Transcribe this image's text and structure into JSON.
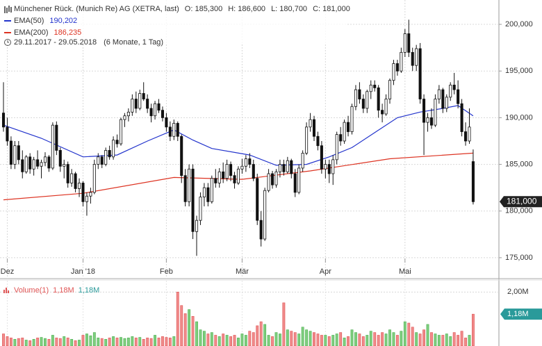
{
  "chart_data": {
    "type": "candlestick",
    "header": {
      "title": "Münchener Rück. (Munich Re) AG (XETRA, last)",
      "open": "O: 185,300",
      "high": "H: 186,600",
      "low": "L: 180,700",
      "close": "C: 181,000",
      "range": "29.11.2017 - 29.05.2018",
      "period": "(6 Monate, 1 Tag)"
    },
    "xlim": [
      -0.92,
      130.8
    ],
    "xticks": [
      {
        "value": 1,
        "label": "Dez"
      },
      {
        "value": 21,
        "label": "Jan '18"
      },
      {
        "value": 43,
        "label": "Feb"
      },
      {
        "value": 63,
        "label": "Mär"
      },
      {
        "value": 85,
        "label": "Apr"
      },
      {
        "value": 106,
        "label": "Mai"
      }
    ],
    "ylim": [
      172.76,
      202.61
    ],
    "yticks": [
      {
        "value": 175,
        "label": "175,000"
      },
      {
        "value": 180,
        "label": "180,000"
      },
      {
        "value": 185,
        "label": "185,000"
      },
      {
        "value": 190,
        "label": "190,000"
      },
      {
        "value": 195,
        "label": "195,000"
      },
      {
        "value": 200,
        "label": "200,000"
      }
    ],
    "grid": true,
    "last_label": "181,000",
    "ohlc": [
      [
        190.5,
        193.8,
        188.5,
        189.0
      ],
      [
        189,
        190,
        187,
        187.5
      ],
      [
        187.5,
        188,
        184.5,
        185
      ],
      [
        185,
        187.5,
        184.5,
        187
      ],
      [
        187,
        187.5,
        185,
        185.5
      ],
      [
        185.5,
        186.5,
        183.5,
        184.2
      ],
      [
        184.2,
        186,
        184,
        185.8
      ],
      [
        185.8,
        186.2,
        184,
        184.5
      ],
      [
        184.5,
        185.8,
        183.8,
        185.5
      ],
      [
        185.5,
        186.5,
        184.5,
        184.8
      ],
      [
        184.8,
        185.5,
        183.5,
        185.2
      ],
      [
        185.2,
        186.3,
        184.8,
        185.8
      ],
      [
        185.8,
        186,
        184.2,
        184.6
      ],
      [
        184.6,
        189.5,
        184.4,
        189.2
      ],
      [
        189.2,
        189.6,
        186,
        186.5
      ],
      [
        186.5,
        186.8,
        184.2,
        184.8
      ],
      [
        184.8,
        185.5,
        183.5,
        185
      ],
      [
        185,
        185.3,
        182.5,
        183
      ],
      [
        183,
        184.5,
        182.6,
        184
      ],
      [
        184,
        184.2,
        182,
        182.4
      ],
      [
        182.4,
        183.5,
        181.5,
        183
      ],
      [
        183,
        183.2,
        180.5,
        181
      ],
      [
        181,
        182,
        179.5,
        181.6
      ],
      [
        181.6,
        182.5,
        180.8,
        182
      ],
      [
        182,
        185.5,
        181.8,
        185
      ],
      [
        185,
        186.2,
        184.5,
        185.8
      ],
      [
        185.8,
        186,
        184.6,
        185
      ],
      [
        185,
        186.8,
        184.8,
        186.5
      ],
      [
        186.5,
        187,
        185.5,
        185.8
      ],
      [
        185.8,
        188,
        185.5,
        187.6
      ],
      [
        187.6,
        188.2,
        186.8,
        187.2
      ],
      [
        187.2,
        190,
        187,
        189.8
      ],
      [
        189.8,
        190.5,
        189,
        190.2
      ],
      [
        190.2,
        191,
        189.6,
        190.6
      ],
      [
        190.6,
        192.5,
        190.2,
        192
      ],
      [
        192,
        192.8,
        190.5,
        191
      ],
      [
        191,
        193,
        190.8,
        192.6
      ],
      [
        192.6,
        193.8,
        191.8,
        192
      ],
      [
        192,
        192.5,
        190.5,
        191
      ],
      [
        191,
        191.5,
        189.5,
        190.2
      ],
      [
        190.2,
        191.8,
        189.8,
        191.5
      ],
      [
        191.5,
        192,
        190.5,
        190.8
      ],
      [
        190.8,
        191.2,
        189.6,
        190
      ],
      [
        190,
        190.5,
        188.5,
        189
      ],
      [
        189,
        189.6,
        187.5,
        188
      ],
      [
        188,
        189.8,
        187.6,
        189.4
      ],
      [
        189.4,
        189.6,
        187.5,
        188
      ],
      [
        188,
        188.2,
        183,
        183.8
      ],
      [
        183.8,
        184.5,
        180.5,
        181
      ],
      [
        181,
        185,
        180.5,
        184.5
      ],
      [
        184.5,
        185,
        177,
        177.8
      ],
      [
        177.8,
        179.5,
        175.2,
        179
      ],
      [
        179,
        182,
        178.5,
        181.5
      ],
      [
        181.5,
        183,
        180.5,
        182.5
      ],
      [
        182.5,
        183,
        180.5,
        181
      ],
      [
        181,
        183.8,
        180.8,
        183.5
      ],
      [
        183.5,
        184.5,
        182.5,
        183
      ],
      [
        183,
        184.6,
        182.5,
        184.2
      ],
      [
        184.2,
        185.2,
        183,
        183.5
      ],
      [
        183.5,
        185.5,
        183.2,
        185
      ],
      [
        185,
        185.3,
        183.2,
        183.8
      ],
      [
        183.8,
        184.2,
        182.4,
        183
      ],
      [
        183,
        184.8,
        182.8,
        184.5
      ],
      [
        184.5,
        185.6,
        184,
        184.8
      ],
      [
        184.8,
        186,
        184.2,
        185.6
      ],
      [
        185.6,
        186.2,
        184.6,
        185
      ],
      [
        185,
        185.5,
        183.2,
        183.5
      ],
      [
        183.5,
        184,
        178.5,
        179
      ],
      [
        179,
        180,
        176.2,
        177
      ],
      [
        177,
        182.5,
        176.8,
        182.2
      ],
      [
        182.2,
        184.5,
        182,
        184
      ],
      [
        184,
        184.3,
        182.4,
        182.8
      ],
      [
        182.8,
        184.5,
        182.5,
        184.2
      ],
      [
        184.2,
        185.5,
        183.6,
        185
      ],
      [
        185,
        185.5,
        183.8,
        184.2
      ],
      [
        184.2,
        185.8,
        184,
        185.4
      ],
      [
        185.4,
        185.6,
        183.5,
        184
      ],
      [
        184,
        184.5,
        181.5,
        182
      ],
      [
        182,
        185,
        181.8,
        184.6
      ],
      [
        184.6,
        186.5,
        184.2,
        186.2
      ],
      [
        186.2,
        189.5,
        186,
        189
      ],
      [
        189,
        190.5,
        188.5,
        189.8
      ],
      [
        189.8,
        190.2,
        187.5,
        188
      ],
      [
        188,
        188.5,
        186.5,
        187
      ],
      [
        187,
        187.5,
        184,
        184.5
      ],
      [
        184.5,
        185.5,
        183.5,
        185
      ],
      [
        185,
        185.5,
        183,
        184
      ],
      [
        184,
        186,
        182.8,
        185.5
      ],
      [
        185.5,
        188.5,
        185,
        188.2
      ],
      [
        188.2,
        189,
        187,
        187.5
      ],
      [
        187.5,
        189.8,
        187.2,
        189.5
      ],
      [
        189.5,
        190.2,
        188,
        188.5
      ],
      [
        188.5,
        191.5,
        188.2,
        191.2
      ],
      [
        191.2,
        193.5,
        190.8,
        193
      ],
      [
        193,
        193.8,
        191.5,
        192
      ],
      [
        192,
        192.5,
        190.5,
        191
      ],
      [
        191,
        193,
        190.5,
        192.8
      ],
      [
        192.8,
        194,
        192,
        193.5
      ],
      [
        193.5,
        194,
        192.8,
        193.2
      ],
      [
        193.2,
        193.5,
        190,
        190.8
      ],
      [
        190.8,
        191.5,
        189.5,
        190.4
      ],
      [
        190.4,
        192.5,
        190.2,
        192
      ],
      [
        192,
        194.2,
        191.5,
        194
      ],
      [
        194,
        196.2,
        193.5,
        195.8
      ],
      [
        195.8,
        196.2,
        194.5,
        195
      ],
      [
        195,
        197.5,
        194.8,
        197
      ],
      [
        197,
        199.5,
        196.5,
        199
      ],
      [
        199,
        200.5,
        196.5,
        197
      ],
      [
        197,
        197.5,
        195,
        195.6
      ],
      [
        195.6,
        197.8,
        195,
        197.4
      ],
      [
        197.4,
        198,
        191.5,
        192
      ],
      [
        192,
        192.5,
        186,
        189.5
      ],
      [
        189.5,
        190.5,
        188.5,
        190
      ],
      [
        190,
        191,
        188.8,
        189.2
      ],
      [
        189.2,
        192.5,
        189,
        192
      ],
      [
        192,
        193.5,
        191.5,
        193
      ],
      [
        193,
        193.2,
        190.5,
        191
      ],
      [
        191,
        192.5,
        190.6,
        192.2
      ],
      [
        192.2,
        193.8,
        191.8,
        193.5
      ],
      [
        193.5,
        194.8,
        192.5,
        193
      ],
      [
        193,
        194,
        191,
        191.5
      ],
      [
        191.5,
        192,
        188,
        188.5
      ],
      [
        188.5,
        189.5,
        187,
        187.5
      ],
      [
        187.5,
        191,
        187.2,
        189
      ],
      [
        185.3,
        186.6,
        180.7,
        181
      ]
    ],
    "series": [
      {
        "name": "EMA(50)",
        "value_label": "190,202",
        "color": "#2233cc",
        "x": [
          0,
          10,
          21,
          30,
          38,
          45,
          50,
          55,
          65,
          72,
          80,
          86,
          92,
          98,
          104,
          110,
          116,
          120,
          124
        ],
        "values": [
          189.2,
          187.8,
          185.8,
          186.0,
          187.5,
          188.7,
          187.6,
          186.7,
          186.0,
          184.9,
          185.0,
          185.8,
          186.8,
          188.4,
          190.0,
          190.6,
          191.0,
          191.3,
          190.2
        ]
      },
      {
        "name": "EMA(200)",
        "value_label": "186,235",
        "color": "#dd3322",
        "x": [
          0,
          21,
          45,
          63,
          81,
          102,
          124
        ],
        "values": [
          181.2,
          181.9,
          183.6,
          183.4,
          184.3,
          185.6,
          186.2
        ]
      }
    ],
    "volume": {
      "name": "Volume(1)",
      "legend_value": "1,18M",
      "legend_value2": "1,18M",
      "tag": "1,18M",
      "ylim": [
        0,
        2.42
      ],
      "yticks": [
        {
          "value": 2,
          "label": "2,00M"
        }
      ],
      "up_color": "#7fce7f",
      "down_color": "#f08a8a",
      "values": [
        0.45,
        0.35,
        0.3,
        0.25,
        0.28,
        0.3,
        0.22,
        0.2,
        0.25,
        0.3,
        0.32,
        0.28,
        0.25,
        0.4,
        0.3,
        0.28,
        0.35,
        0.3,
        0.25,
        0.2,
        0.22,
        0.4,
        0.45,
        0.38,
        0.5,
        0.3,
        0.28,
        0.25,
        0.3,
        0.35,
        0.3,
        0.32,
        0.28,
        0.3,
        0.35,
        0.3,
        0.32,
        0.25,
        0.3,
        0.28,
        0.4,
        0.3,
        0.35,
        0.32,
        0.3,
        0.35,
        2.0,
        1.5,
        1.2,
        1.35,
        1.1,
        0.9,
        0.6,
        0.55,
        0.45,
        0.5,
        0.4,
        0.35,
        0.45,
        0.4,
        0.35,
        0.4,
        0.3,
        0.45,
        0.4,
        0.55,
        0.5,
        0.75,
        0.9,
        0.8,
        0.4,
        0.35,
        0.5,
        0.45,
        1.6,
        0.6,
        0.55,
        0.5,
        0.45,
        0.7,
        0.6,
        0.55,
        0.5,
        0.45,
        0.4,
        0.4,
        0.35,
        0.4,
        0.45,
        0.5,
        0.3,
        0.35,
        0.6,
        0.5,
        0.45,
        0.35,
        0.4,
        0.55,
        0.5,
        0.4,
        0.5,
        0.45,
        0.6,
        0.5,
        0.4,
        0.55,
        0.9,
        0.85,
        0.7,
        0.5,
        0.45,
        0.6,
        0.8,
        0.5,
        0.45,
        0.4,
        0.4,
        0.45,
        0.35,
        0.5,
        0.4,
        0.55,
        0.3,
        0.4,
        1.18
      ]
    }
  }
}
